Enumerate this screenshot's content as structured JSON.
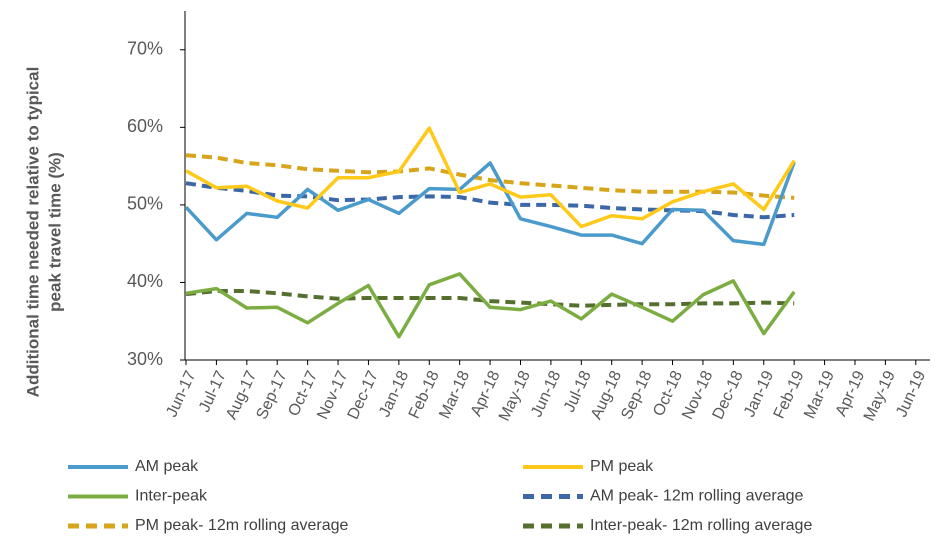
{
  "chart_data": {
    "type": "line",
    "ylabel": [
      "Additional time needed relative to typical",
      "peak travel time (%)"
    ],
    "categories": [
      "Jun-17",
      "Jul-17",
      "Aug-17",
      "Sep-17",
      "Oct-17",
      "Nov-17",
      "Dec-17",
      "Jan-18",
      "Feb-18",
      "Mar-18",
      "Apr-18",
      "May-18",
      "Jun-18",
      "Jul-18",
      "Aug-18",
      "Sep-18",
      "Oct-18",
      "Nov-18",
      "Dec-18",
      "Jan-19",
      "Feb-19",
      "Mar-19",
      "Apr-19",
      "May-19",
      "Jun-19"
    ],
    "ylim": [
      30,
      75
    ],
    "yticks": [
      {
        "value": 30,
        "label": "30%"
      },
      {
        "value": 40,
        "label": "40%"
      },
      {
        "value": 50,
        "label": "50%"
      },
      {
        "value": 60,
        "label": "60%"
      },
      {
        "value": 70,
        "label": "70%"
      }
    ],
    "series": [
      {
        "name": "AM peak",
        "color": "#4a9bcb",
        "dashed": false,
        "values": [
          49.7,
          45.5,
          48.9,
          48.4,
          52.0,
          49.3,
          50.7,
          48.9,
          52.1,
          52.0,
          55.4,
          48.2,
          47.2,
          46.1,
          46.1,
          45.0,
          49.4,
          49.3,
          45.4,
          44.9,
          55.5,
          null,
          null,
          null,
          null
        ]
      },
      {
        "name": "PM peak",
        "color": "#ffc91a",
        "dashed": false,
        "values": [
          54.4,
          52.2,
          52.4,
          50.5,
          49.6,
          53.5,
          53.5,
          54.3,
          59.9,
          51.6,
          52.7,
          51.0,
          51.3,
          47.2,
          48.6,
          48.2,
          50.4,
          51.7,
          52.7,
          49.4,
          55.7,
          null,
          null,
          null,
          null
        ]
      },
      {
        "name": "Inter-peak",
        "color": "#7cad42",
        "dashed": false,
        "values": [
          38.6,
          39.2,
          36.7,
          36.8,
          34.8,
          37.3,
          39.6,
          33.0,
          39.7,
          41.1,
          36.8,
          36.5,
          37.6,
          35.3,
          38.5,
          36.8,
          35.0,
          38.4,
          40.2,
          33.4,
          38.8,
          null,
          null,
          null,
          null
        ]
      },
      {
        "name": "AM peak- 12m rolling average",
        "color": "#3d68a8",
        "dashed": true,
        "values": [
          52.8,
          52.2,
          51.8,
          51.2,
          51.1,
          50.6,
          50.7,
          51.0,
          51.1,
          51.0,
          50.3,
          50.0,
          50.0,
          49.9,
          49.6,
          49.4,
          49.3,
          49.2,
          48.7,
          48.4,
          48.7,
          null,
          null,
          null,
          null
        ]
      },
      {
        "name": "PM peak- 12m rolling average",
        "color": "#d6a51c",
        "dashed": true,
        "values": [
          56.4,
          56.1,
          55.4,
          55.1,
          54.6,
          54.4,
          54.2,
          54.3,
          54.7,
          53.9,
          53.2,
          52.8,
          52.5,
          52.2,
          51.9,
          51.7,
          51.7,
          51.7,
          51.6,
          51.2,
          50.9,
          null,
          null,
          null,
          null
        ]
      },
      {
        "name": "Inter-peak- 12m rolling average",
        "color": "#556f2e",
        "dashed": true,
        "values": [
          38.5,
          38.9,
          38.9,
          38.6,
          38.2,
          37.9,
          38.0,
          38.0,
          38.0,
          38.0,
          37.6,
          37.4,
          37.2,
          37.0,
          37.1,
          37.2,
          37.2,
          37.3,
          37.3,
          37.4,
          37.3,
          null,
          null,
          null,
          null
        ]
      }
    ]
  }
}
